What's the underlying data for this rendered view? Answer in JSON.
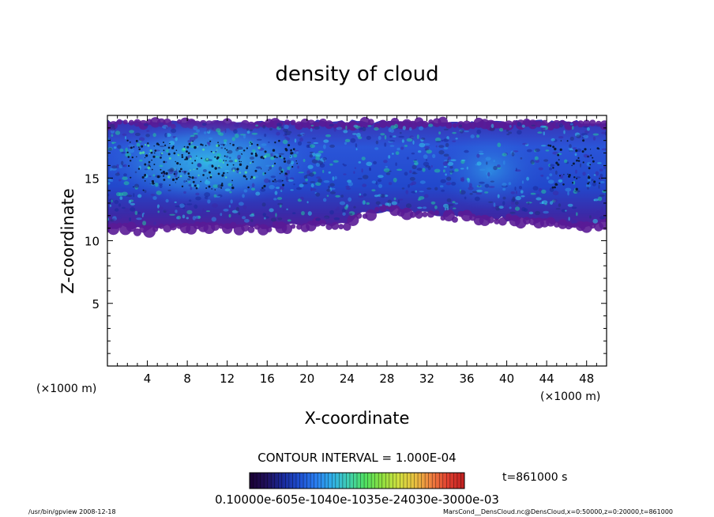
{
  "chart_data": {
    "type": "heatmap",
    "title": "density of cloud",
    "xlabel": "X-coordinate",
    "ylabel": "Z-coordinate",
    "x_unit_left": "(×1000 m)",
    "x_unit_right": "(×1000 m)",
    "xlim": [
      0,
      50
    ],
    "ylim": [
      0,
      20
    ],
    "x_ticks": [
      "4",
      "8",
      "12",
      "16",
      "20",
      "24",
      "28",
      "32",
      "36",
      "40",
      "44",
      "48"
    ],
    "y_ticks": [
      "5",
      "10",
      "15"
    ],
    "x_tick_values": [
      4,
      8,
      12,
      16,
      20,
      24,
      28,
      32,
      36,
      40,
      44,
      48
    ],
    "y_tick_values": [
      5,
      10,
      15
    ],
    "contour_interval_label": "CONTOUR INTERVAL = 1.000E-04",
    "time_label": "t=861000  s",
    "colorbar_labels": "0.10000e-605e-1040e-1035e-24030e-3000e-03",
    "colorbar_colors": [
      "#1a0033",
      "#20105a",
      "#1a2a9a",
      "#1e4fd0",
      "#2a7ef0",
      "#30b0e8",
      "#40d0b0",
      "#50e060",
      "#8ee040",
      "#d0e040",
      "#e8c040",
      "#f08040",
      "#e04030",
      "#c02020"
    ],
    "cloud_top_z": 19.5,
    "cloud_base_z_by_x": [
      [
        0,
        11.2
      ],
      [
        4,
        11.0
      ],
      [
        8,
        11.3
      ],
      [
        12,
        11.2
      ],
      [
        16,
        11.2
      ],
      [
        20,
        11.4
      ],
      [
        24,
        11.4
      ],
      [
        25,
        12.2
      ],
      [
        28,
        12.6
      ],
      [
        32,
        12.2
      ],
      [
        36,
        12.0
      ],
      [
        40,
        11.8
      ],
      [
        44,
        11.6
      ],
      [
        48,
        11.0
      ],
      [
        50,
        11.5
      ]
    ],
    "colors": {
      "edge": "#5a1b96",
      "body": "#1f3fcf",
      "core": "#2fb4e6",
      "gap": "#3b30b0"
    }
  },
  "footer": {
    "left": "/usr/bin/gpview   2008-12-18",
    "right": "MarsCond__DensCloud.nc@DensCloud,x=0:50000,z=0:20000,t=861000"
  }
}
